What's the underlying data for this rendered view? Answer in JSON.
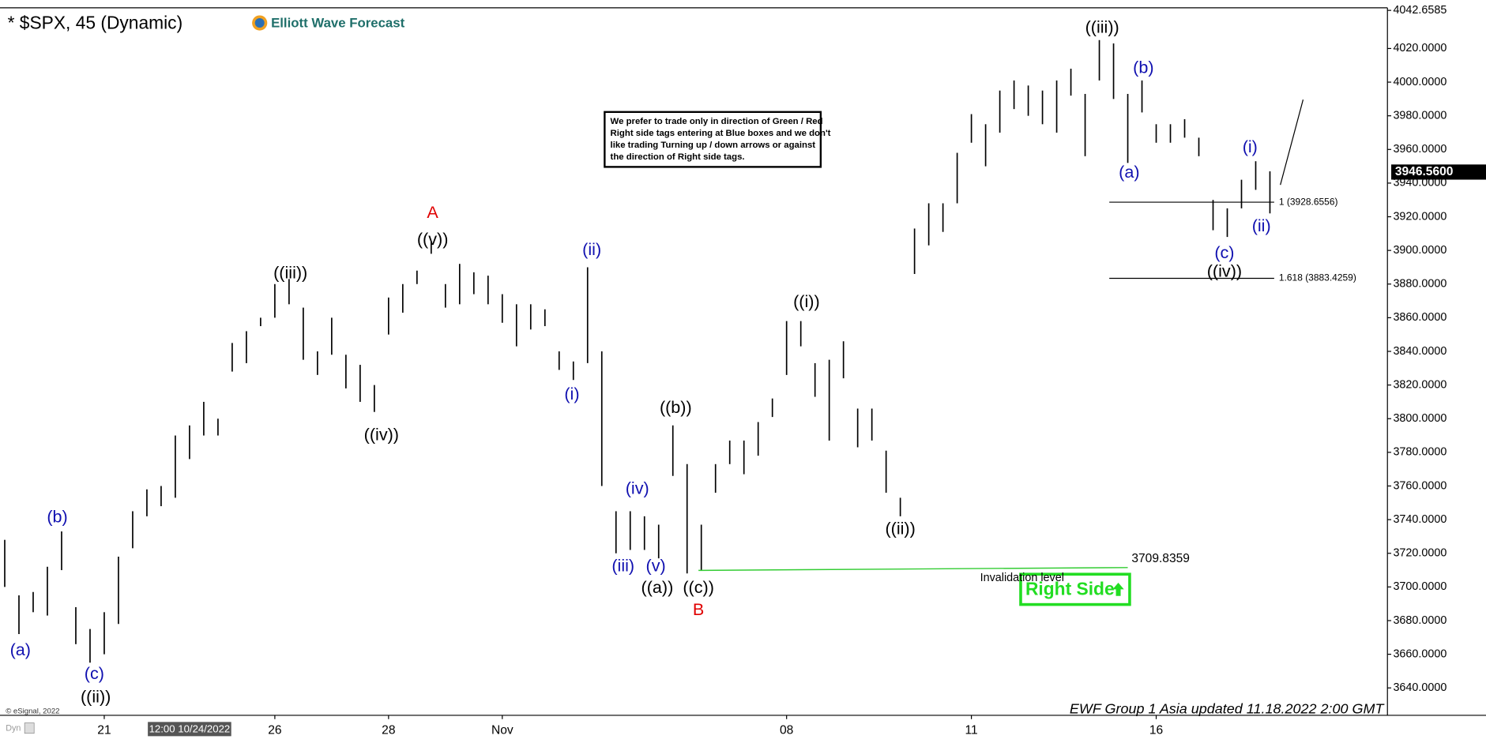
{
  "chart_data": {
    "type": "range-bar",
    "title": "* $SPX, 45 (Dynamic)",
    "brand": "Elliott Wave Forecast",
    "color": "#000000",
    "categories": [
      null,
      null,
      null,
      null,
      null,
      null,
      null,
      "21",
      null,
      null,
      null,
      null,
      null,
      "12:00 10/24/2022",
      null,
      null,
      null,
      null,
      null,
      "26",
      null,
      null,
      null,
      null,
      null,
      null,
      null,
      "28",
      null,
      null,
      null,
      null,
      null,
      null,
      null,
      "Nov",
      null,
      null,
      null,
      null,
      null,
      null,
      null,
      null,
      null,
      null,
      null,
      null,
      null,
      null,
      null,
      null,
      null,
      null,
      null,
      "08",
      null,
      null,
      null,
      null,
      null,
      null,
      null,
      null,
      null,
      null,
      null,
      null,
      "11",
      null,
      null,
      null,
      null,
      null,
      null,
      null,
      null,
      null,
      null,
      null,
      null,
      "16",
      null,
      null,
      null,
      null,
      null,
      null,
      null,
      null
    ],
    "highlighted_category": 13,
    "high": [
      3728,
      3695,
      3697,
      3712,
      3733,
      3688,
      3675,
      3685,
      3718,
      3745,
      3758,
      3760,
      3790,
      3796,
      3810,
      3800,
      3845,
      3852,
      3860,
      3880,
      3883,
      3866,
      3840,
      3860,
      3838,
      3832,
      3820,
      3872,
      3880,
      3888,
      3905,
      3880,
      3892,
      3887,
      3885,
      3874,
      3868,
      3868,
      3865,
      3840,
      3834,
      3890,
      3840,
      3745,
      3745,
      3742,
      3737,
      3796,
      3773,
      3737,
      3773,
      3787,
      3787,
      3798,
      3812,
      3858,
      3858,
      3833,
      3835,
      3846,
      3806,
      3806,
      3781,
      3753,
      3913,
      3928,
      3928,
      3958,
      3981,
      3975,
      3995,
      4001,
      3998,
      3995,
      4001,
      4008,
      3993,
      4025,
      4023,
      3993,
      4001,
      3975,
      3975,
      3978,
      3967,
      3930,
      3925,
      3942,
      3953,
      3947
    ],
    "low": [
      3700,
      3672,
      3685,
      3683,
      3710,
      3666,
      3655,
      3660,
      3678,
      3723,
      3742,
      3748,
      3753,
      3776,
      3790,
      3790,
      3828,
      3833,
      3855,
      3860,
      3868,
      3835,
      3826,
      3838,
      3818,
      3810,
      3804,
      3850,
      3863,
      3880,
      3898,
      3866,
      3868,
      3874,
      3868,
      3857,
      3843,
      3853,
      3855,
      3829,
      3823,
      3833,
      3760,
      3720,
      3722,
      3722,
      3717,
      3766,
      3708,
      3710,
      3756,
      3773,
      3767,
      3778,
      3801,
      3826,
      3843,
      3813,
      3787,
      3824,
      3783,
      3787,
      3756,
      3742,
      3886,
      3903,
      3911,
      3928,
      3964,
      3950,
      3970,
      3984,
      3980,
      3975,
      3970,
      3992,
      3956,
      4001,
      3990,
      3952,
      3982,
      3964,
      3964,
      3967,
      3956,
      3912,
      3908,
      3925,
      3936,
      3922
    ],
    "ylim": [
      3623.7,
      4044.2
    ],
    "yticks": [
      {
        "value": 3640,
        "label": "3640.0000"
      },
      {
        "value": 3660,
        "label": "3660.0000"
      },
      {
        "value": 3680,
        "label": "3680.0000"
      },
      {
        "value": 3700,
        "label": "3700.0000"
      },
      {
        "value": 3720,
        "label": "3720.0000"
      },
      {
        "value": 3740,
        "label": "3740.0000"
      },
      {
        "value": 3760,
        "label": "3760.0000"
      },
      {
        "value": 3780,
        "label": "3780.0000"
      },
      {
        "value": 3800,
        "label": "3800.0000"
      },
      {
        "value": 3820,
        "label": "3820.0000"
      },
      {
        "value": 3840,
        "label": "3840.0000"
      },
      {
        "value": 3860,
        "label": "3860.0000"
      },
      {
        "value": 3880,
        "label": "3880.0000"
      },
      {
        "value": 3900,
        "label": "3900.0000"
      },
      {
        "value": 3920,
        "label": "3920.0000"
      },
      {
        "value": 3940,
        "label": "3940.0000"
      },
      {
        "value": 3960,
        "label": "3960.0000"
      },
      {
        "value": 3980,
        "label": "3980.0000"
      },
      {
        "value": 4000,
        "label": "4000.0000"
      },
      {
        "value": 4020,
        "label": "4020.0000"
      },
      4042.6585
    ],
    "last_price": {
      "value": 3946.56,
      "label": "3946.5600"
    },
    "annotations": [
      {
        "text": "(a)",
        "x": 1.1,
        "y": 3662,
        "color": "#1010b0"
      },
      {
        "text": "(b)",
        "x": 3.7,
        "y": 3741,
        "color": "#1010b0"
      },
      {
        "text": "(c)",
        "x": 6.3,
        "y": 3648,
        "color": "#1010b0"
      },
      {
        "text": "((ii))",
        "x": 6.4,
        "y": 3634,
        "color": "#000000"
      },
      {
        "text": "((iii))",
        "x": 20.1,
        "y": 3886,
        "color": "#000000"
      },
      {
        "text": "((iv))",
        "x": 26.5,
        "y": 3790,
        "color": "#000000"
      },
      {
        "text": "((v))",
        "x": 30.1,
        "y": 3906,
        "color": "#000000"
      },
      {
        "text": "A",
        "x": 30.1,
        "y": 3922,
        "color": "#e00000"
      },
      {
        "text": "(ii)",
        "x": 41.3,
        "y": 3900,
        "color": "#1010b0"
      },
      {
        "text": "(i)",
        "x": 39.9,
        "y": 3814,
        "color": "#1010b0"
      },
      {
        "text": "(iv)",
        "x": 44.5,
        "y": 3758,
        "color": "#1010b0"
      },
      {
        "text": "(iii)",
        "x": 43.5,
        "y": 3712,
        "color": "#1010b0"
      },
      {
        "text": "(v)",
        "x": 45.8,
        "y": 3712,
        "color": "#1010b0"
      },
      {
        "text": "((a))",
        "x": 45.9,
        "y": 3699,
        "color": "#000000"
      },
      {
        "text": "((b))",
        "x": 47.2,
        "y": 3806,
        "color": "#000000"
      },
      {
        "text": "((c))",
        "x": 48.8,
        "y": 3699,
        "color": "#000000"
      },
      {
        "text": "B",
        "x": 48.8,
        "y": 3686,
        "color": "#e00000"
      },
      {
        "text": "((i))",
        "x": 56.4,
        "y": 3869,
        "color": "#000000"
      },
      {
        "text": "((ii))",
        "x": 63,
        "y": 3734,
        "color": "#000000"
      },
      {
        "text": "((iii))",
        "x": 77.2,
        "y": 4032,
        "color": "#000000"
      },
      {
        "text": "(b)",
        "x": 80.1,
        "y": 4008,
        "color": "#1010b0"
      },
      {
        "text": "(a)",
        "x": 79.1,
        "y": 3946,
        "color": "#1010b0"
      },
      {
        "text": "(i)",
        "x": 87.6,
        "y": 3961,
        "color": "#1010b0"
      },
      {
        "text": "(ii)",
        "x": 88.4,
        "y": 3914,
        "color": "#1010b0"
      },
      {
        "text": "(c)",
        "x": 85.8,
        "y": 3898,
        "color": "#1010b0"
      },
      {
        "text": "((iv))",
        "x": 85.8,
        "y": 3887,
        "color": "#000000"
      }
    ],
    "levels": [
      {
        "label": "1 (3928.6556)",
        "value": 3928.6556,
        "from": 77.7,
        "to": 89.3,
        "color": "#000000"
      },
      {
        "label": "1.618 (3883.4259)",
        "value": 3883.4259,
        "from": 77.7,
        "to": 89.3,
        "color": "#000000"
      }
    ],
    "invalidation": {
      "label": "Invalidation level",
      "value": 3709.8359,
      "from": 48.8,
      "to": 79,
      "color": "#33cc33"
    },
    "note": [
      "We prefer to trade only in direction of Green / Red",
      "Right side tags entering at Blue boxes and we don't",
      "like trading Turning up / down arrows or against",
      "the direction of Right side tags."
    ],
    "tag": "Right Side",
    "footer": "EWF Group 1 Asia updated 11.18.2022 2:00 GMT",
    "copyright": "© eSignal, 2022",
    "mode": "Dyn"
  }
}
